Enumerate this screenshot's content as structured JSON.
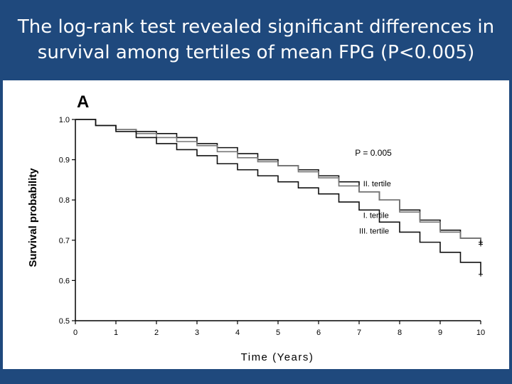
{
  "slide": {
    "title_line1": "The log-rank test revealed significant differences in",
    "title_line2": "survival among tertiles of mean FPG (P<0.005)",
    "background_color": "#1f497d"
  },
  "chart_data": {
    "type": "line",
    "panel_label": "A",
    "xlabel": "Time (Years)",
    "ylabel": "Survival probability",
    "xlim": [
      0,
      10
    ],
    "ylim": [
      0.5,
      1.0
    ],
    "xticks": [
      0,
      1,
      2,
      3,
      4,
      5,
      6,
      7,
      8,
      9,
      10
    ],
    "yticks": [
      0.5,
      0.6,
      0.7,
      0.8,
      0.9,
      1.0
    ],
    "ytick_labels": [
      "0.5",
      "0.6",
      "0.7",
      "0.8",
      "0.9",
      "1.0"
    ],
    "annotation": "P = 0.005",
    "grid": false,
    "series": [
      {
        "name": "II. tertile",
        "color": "#111111",
        "x": [
          0,
          0.5,
          1,
          1.5,
          2,
          2.5,
          3,
          3.5,
          4,
          4.5,
          5,
          5.5,
          6,
          6.5,
          7,
          7.5,
          8,
          8.5,
          9,
          9.5,
          10
        ],
        "y": [
          1.0,
          0.985,
          0.975,
          0.97,
          0.965,
          0.955,
          0.94,
          0.93,
          0.915,
          0.9,
          0.885,
          0.875,
          0.86,
          0.845,
          0.82,
          0.8,
          0.775,
          0.75,
          0.725,
          0.705,
          0.69
        ]
      },
      {
        "name": "I. tertile",
        "color": "#777777",
        "x": [
          0,
          0.5,
          1,
          1.5,
          2,
          2.5,
          3,
          3.5,
          4,
          4.5,
          5,
          5.5,
          6,
          6.5,
          7,
          7.5,
          8,
          8.5,
          9,
          9.5,
          10
        ],
        "y": [
          1.0,
          0.985,
          0.975,
          0.965,
          0.955,
          0.945,
          0.935,
          0.92,
          0.905,
          0.895,
          0.885,
          0.87,
          0.855,
          0.835,
          0.82,
          0.8,
          0.77,
          0.745,
          0.72,
          0.705,
          0.695
        ]
      },
      {
        "name": "III. tertile",
        "color": "#111111",
        "x": [
          0,
          0.5,
          1,
          1.5,
          2,
          2.5,
          3,
          3.5,
          4,
          4.5,
          5,
          5.5,
          6,
          6.5,
          7,
          7.5,
          8,
          8.5,
          9,
          9.5,
          10
        ],
        "y": [
          1.0,
          0.985,
          0.97,
          0.955,
          0.94,
          0.925,
          0.91,
          0.89,
          0.875,
          0.86,
          0.845,
          0.83,
          0.815,
          0.795,
          0.775,
          0.745,
          0.72,
          0.695,
          0.67,
          0.645,
          0.615
        ]
      }
    ],
    "series_labels": [
      {
        "text": "II. tertile",
        "x": 7.1,
        "y": 0.834
      },
      {
        "text": "I. tertile",
        "x": 7.1,
        "y": 0.755
      },
      {
        "text": "III. tertile",
        "x": 7.0,
        "y": 0.716
      }
    ],
    "annotation_at": {
      "x": 6.9,
      "y": 0.91
    }
  }
}
